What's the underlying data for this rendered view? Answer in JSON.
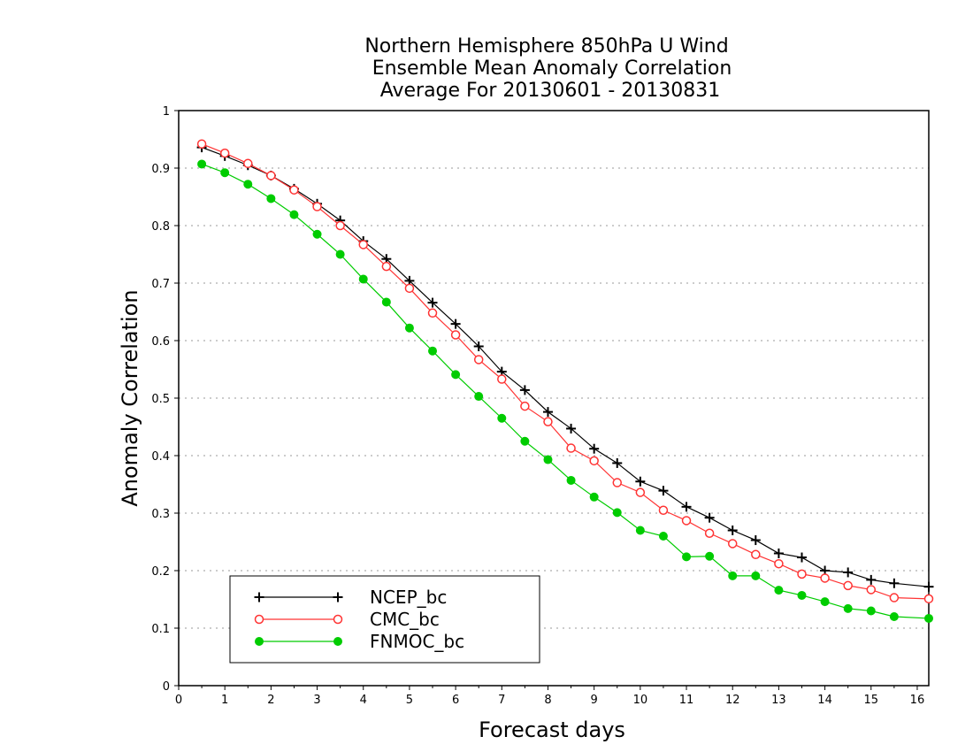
{
  "chart_data": {
    "type": "line",
    "title": [
      "Northern Hemisphere 850hPa U Wind",
      "Ensemble Mean Anomaly Correlation",
      "Average For 20130601 - 20130831"
    ],
    "xlabel": "Forecast days",
    "ylabel": "Anomaly Correlation",
    "xlim": [
      0,
      16.25
    ],
    "ylim": [
      0,
      1
    ],
    "x_ticks": [
      "0",
      "1",
      "2",
      "3",
      "4",
      "5",
      "6",
      "7",
      "8",
      "9",
      "10",
      "11",
      "12",
      "13",
      "14",
      "15",
      "16"
    ],
    "y_ticks": [
      "0",
      "0.1",
      "0.2",
      "0.3",
      "0.4",
      "0.5",
      "0.6",
      "0.7",
      "0.8",
      "0.9",
      "1"
    ],
    "grid": "horizontal dotted",
    "legend_position": "bottom-left",
    "x": [
      0.5,
      1,
      1.5,
      2,
      2.5,
      3,
      3.5,
      4,
      4.5,
      5,
      5.5,
      6,
      6.5,
      7,
      7.5,
      8,
      8.5,
      9,
      9.5,
      10,
      10.5,
      11,
      11.5,
      12,
      12.5,
      13,
      13.5,
      14,
      14.5,
      15,
      15.5,
      16.25
    ],
    "series": [
      {
        "name": "NCEP_bc",
        "color": "#000000",
        "marker": "plus",
        "values": [
          0.936,
          0.921,
          0.905,
          0.887,
          0.864,
          0.838,
          0.809,
          0.773,
          0.742,
          0.704,
          0.666,
          0.629,
          0.59,
          0.546,
          0.514,
          0.476,
          0.447,
          0.412,
          0.387,
          0.355,
          0.339,
          0.311,
          0.292,
          0.27,
          0.253,
          0.23,
          0.223,
          0.2,
          0.197,
          0.184,
          0.178,
          0.172
        ]
      },
      {
        "name": "CMC_bc",
        "color": "#ff3333",
        "marker": "open-circle",
        "values": [
          0.942,
          0.926,
          0.908,
          0.887,
          0.862,
          0.833,
          0.8,
          0.767,
          0.729,
          0.691,
          0.648,
          0.61,
          0.567,
          0.533,
          0.486,
          0.459,
          0.413,
          0.391,
          0.353,
          0.336,
          0.305,
          0.287,
          0.265,
          0.247,
          0.228,
          0.212,
          0.194,
          0.187,
          0.174,
          0.167,
          0.153,
          0.151
        ]
      },
      {
        "name": "FNMOC_bc",
        "color": "#00cc00",
        "marker": "filled-circle",
        "values": [
          0.907,
          0.892,
          0.872,
          0.847,
          0.819,
          0.785,
          0.75,
          0.707,
          0.667,
          0.622,
          0.582,
          0.541,
          0.503,
          0.465,
          0.425,
          0.393,
          0.357,
          0.328,
          0.301,
          0.27,
          0.26,
          0.224,
          0.225,
          0.191,
          0.191,
          0.166,
          0.157,
          0.146,
          0.134,
          0.13,
          0.12,
          0.117
        ]
      }
    ]
  }
}
